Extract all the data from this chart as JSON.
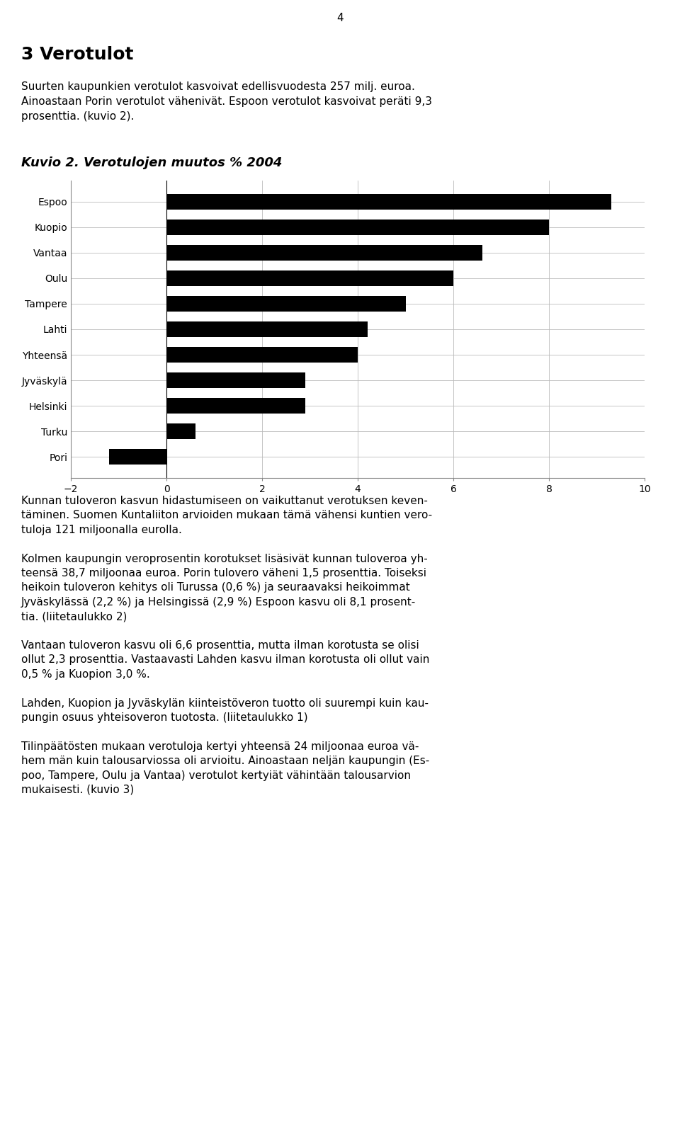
{
  "page_number": "4",
  "section_title": "3 Verotulot",
  "intro_lines": [
    "Suurten kaupunkien verotulot kasvoivat edellisvuodesta 257 milj. euroa.",
    "Ainoastaan Porin verotulot vähenivät. Espoon verotulot kasvoivat peräti 9,3",
    "prosenttia. (kuvio 2)."
  ],
  "chart_title": "Kuvio 2. Verotulojen muutos % 2004",
  "categories": [
    "Espoo",
    "Kuopio",
    "Vantaa",
    "Oulu",
    "Tampere",
    "Lahti",
    "Yhteensä",
    "Jyväskylä",
    "Helsinki",
    "Turku",
    "Pori"
  ],
  "values": [
    9.3,
    8.0,
    6.6,
    6.0,
    5.0,
    4.2,
    4.0,
    2.9,
    2.9,
    0.6,
    -1.2
  ],
  "bar_color": "#000000",
  "xlim": [
    -2,
    10
  ],
  "xticks": [
    -2,
    0,
    2,
    4,
    6,
    8,
    10
  ],
  "background_color": "#ffffff",
  "body_paragraphs": [
    "Kunnan tuloveron kasvun hidastumiseen on vaikuttanut verotuksen keven-\ntäminen. Suomen Kuntaliiton arvioiden mukaan tämä vähensi kuntien vero-\ntuloja 121 miljoonalla eurolla.",
    "Kolmen kaupungin veroprosentin korotukset lisäsivät kunnan tuloveroa yh-\nteensä 38,7 miljoonaa euroa. Porin tulovero väheni 1,5 prosenttia. Toiseksi\nheikoin tuloveron kehitys oli Turussa (0,6 %) ja seuraavaksi heikoimmat\nJyväskylässä (2,2 %) ja Helsingissä (2,9 %) Espoon kasvu oli 8,1 prosent-\ntia. (liitetaulukko 2)",
    "Vantaan tuloveron kasvu oli 6,6 prosenttia, mutta ilman korotusta se olisi\nollut 2,3 prosenttia. Vastaavasti Lahden kasvu ilman korotusta oli ollut vain\n0,5 % ja Kuopion 3,0 %.",
    "Lahden, Kuopion ja Jyväskylän kiinteistöveron tuotto oli suurempi kuin kau-\npungin osuus yhteisoveron tuotosta. (liitetaulukko 1)",
    "Tilinpäätösten mukaan verotuloja kertyi yhteensä 24 miljoonaa euroa vä-\nhem män kuin talousarviossa oli arvioitu. Ainoastaan neljän kaupungin (Es-\npoo, Tampere, Oulu ja Vantaa) verotulot kertyiät vähintään talousarvion\nmukaisesti. (kuvio 3)"
  ],
  "font_family": "DejaVu Sans",
  "section_fontsize": 18,
  "chart_title_fontsize": 13,
  "body_fontsize": 11,
  "axis_fontsize": 10,
  "bar_height": 0.6,
  "fig_width": 9.6,
  "fig_height": 15.93,
  "dpi": 100
}
